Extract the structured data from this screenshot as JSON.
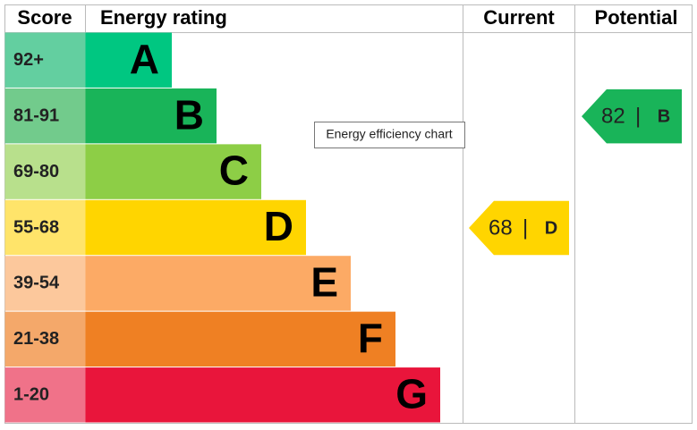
{
  "chart_data": {
    "type": "epc",
    "headers": {
      "score": "Score",
      "rating": "Energy rating",
      "current": "Current",
      "potential": "Potential"
    },
    "bands": [
      {
        "score": "92+",
        "letter": "A",
        "color": "#00c781",
        "score_color": "#63cfa0"
      },
      {
        "score": "81-91",
        "letter": "B",
        "color": "#19b459",
        "score_color": "#72cb8c"
      },
      {
        "score": "69-80",
        "letter": "C",
        "color": "#8dce46",
        "score_color": "#b8e08c"
      },
      {
        "score": "55-68",
        "letter": "D",
        "color": "#ffd500",
        "score_color": "#ffe46a"
      },
      {
        "score": "39-54",
        "letter": "E",
        "color": "#fcaa65",
        "score_color": "#fcc89c"
      },
      {
        "score": "21-38",
        "letter": "F",
        "color": "#ef8023",
        "score_color": "#f4a86a"
      },
      {
        "score": "1-20",
        "letter": "G",
        "color": "#e9153b",
        "score_color": "#f07289"
      }
    ],
    "current": {
      "value": 68,
      "letter": "D"
    },
    "potential": {
      "value": 82,
      "letter": "B"
    },
    "tooltip": "Energy efficiency chart"
  }
}
